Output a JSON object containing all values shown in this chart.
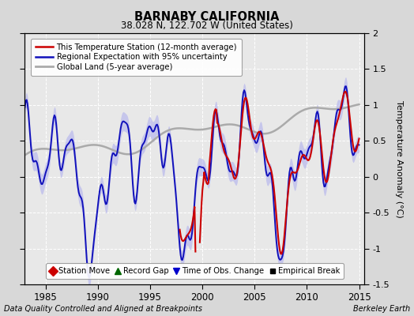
{
  "title": "BARNABY CALIFORNIA",
  "subtitle": "38.028 N, 122.702 W (United States)",
  "ylabel": "Temperature Anomaly (°C)",
  "xlabel_left": "Data Quality Controlled and Aligned at Breakpoints",
  "xlabel_right": "Berkeley Earth",
  "ylim": [
    -1.5,
    2.0
  ],
  "xlim": [
    1983.0,
    2015.5
  ],
  "xticks": [
    1985,
    1990,
    1995,
    2000,
    2005,
    2010,
    2015
  ],
  "yticks": [
    -1.5,
    -1.0,
    -0.5,
    0.0,
    0.5,
    1.0,
    1.5,
    2.0
  ],
  "bg_color": "#d8d8d8",
  "plot_bg_color": "#e8e8e8",
  "grid_color": "#ffffff",
  "blue_line_color": "#1111bb",
  "blue_fill_color": "#aaaaee",
  "red_line_color": "#cc0000",
  "gray_line_color": "#aaaaaa",
  "figsize": [
    5.24,
    4.0
  ],
  "dpi": 100
}
